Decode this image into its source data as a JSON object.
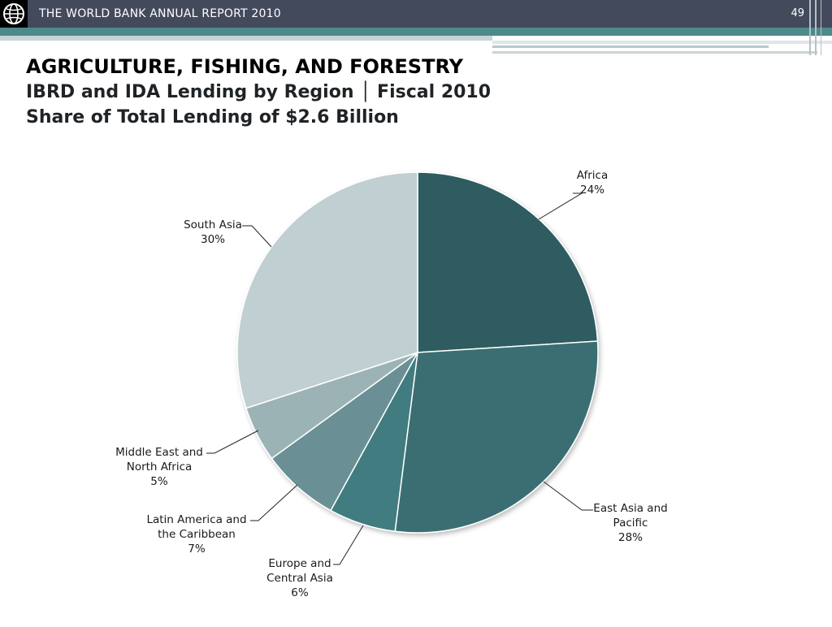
{
  "header": {
    "report_title": "THE WORLD BANK ANNUAL REPORT 2010",
    "page_number": "49",
    "logo_icon": "world-bank-globe-icon"
  },
  "slide": {
    "title": "AGRICULTURE, FISHING, AND FORESTRY",
    "subtitle1": "IBRD and IDA Lending by Region │ Fiscal 2010",
    "subtitle2": "Share of Total Lending of $2.6 Billion"
  },
  "colors": {
    "header_bg": "#434a5c",
    "teal_bar": "#4e8a8c",
    "slice_colors": [
      "#2f5b61",
      "#3a6e72",
      "#3f7b80",
      "#6a9095",
      "#9cb3b6",
      "#c0cfd1"
    ]
  },
  "chart_data": {
    "type": "pie",
    "title": "",
    "slices": [
      {
        "label": [
          "Africa"
        ],
        "percent_label": "24%",
        "value": 24
      },
      {
        "label": [
          "East Asia and",
          "Pacific"
        ],
        "percent_label": "28%",
        "value": 28
      },
      {
        "label": [
          "Europe and",
          "Central Asia"
        ],
        "percent_label": "6%",
        "value": 6
      },
      {
        "label": [
          "Latin America and",
          "the Caribbean"
        ],
        "percent_label": "7%",
        "value": 7
      },
      {
        "label": [
          "Middle East and",
          "North Africa"
        ],
        "percent_label": "5%",
        "value": 5
      },
      {
        "label": [
          "South Asia"
        ],
        "percent_label": "30%",
        "value": 30
      }
    ]
  }
}
